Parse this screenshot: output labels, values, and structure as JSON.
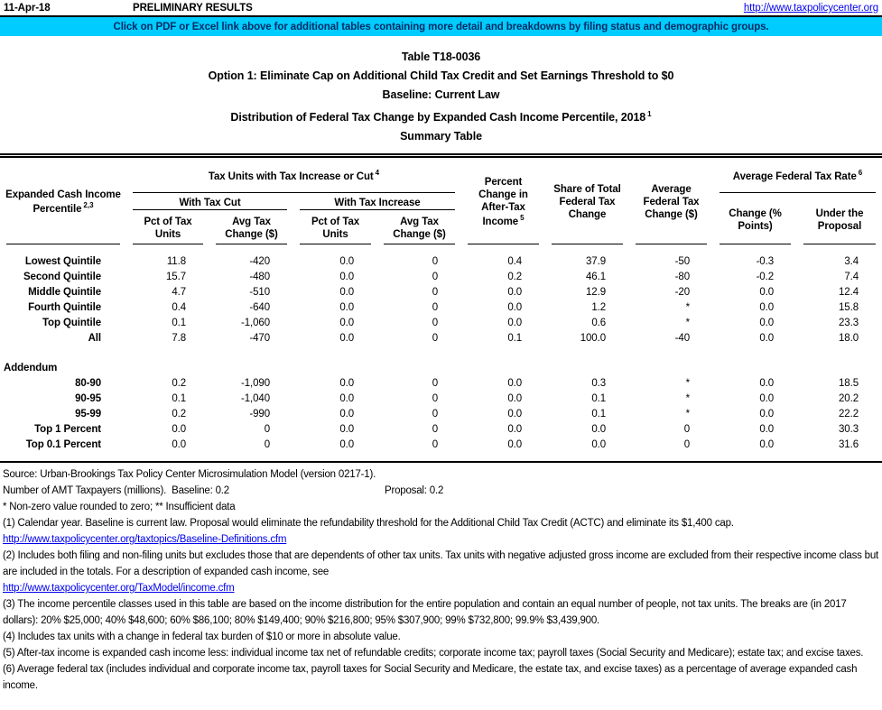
{
  "colors": {
    "banner_background": "#00CCFF",
    "banner_text": "#002B63",
    "hyperlink": "#0000EE",
    "text": "#000000"
  },
  "top_bar": {
    "date": "11-Apr-18",
    "status": "PRELIMINARY RESULTS",
    "url": "http://www.taxpolicycenter.org"
  },
  "banner": {
    "text": "Click on PDF or Excel link above for additional tables containing more detail and breakdowns by filing status and demographic groups."
  },
  "title": {
    "line1": "Table T18-0036",
    "line2": "Option 1: Eliminate Cap on Additional Child Tax Credit and Set Earnings Threshold to $0",
    "line3": "Baseline: Current Law",
    "line4": "Distribution of Federal Tax Change by Expanded Cash Income Percentile, 2018",
    "line4_sup": "1",
    "line5": "Summary Table"
  },
  "table": {
    "headers": {
      "stub": "Expanded Cash Income\nPercentile",
      "stub_sup": "2,3",
      "group_tax_units": "Tax Units with Tax Increase or Cut",
      "group_tax_units_sup": "4",
      "with_tax_cut": "With Tax Cut",
      "with_tax_increase": "With Tax Increase",
      "pct_of_tax_units": "Pct of Tax\nUnits",
      "avg_tax_change": "Avg Tax\nChange ($)",
      "pct_change_after_tax": "Percent\nChange in\nAfter-Tax\nIncome",
      "pct_change_after_tax_sup": "5",
      "share_of_total": "Share of Total\nFederal Tax\nChange",
      "avg_federal_tax_change": "Average\nFederal Tax\nChange ($)",
      "avg_federal_tax_rate": "Average Federal Tax Rate",
      "avg_federal_tax_rate_sup": "6",
      "change_pct_points": "Change (%\nPoints)",
      "under_the_proposal": "Under the\nProposal"
    },
    "rows": [
      {
        "label": "Lowest Quintile",
        "values": [
          "11.8",
          "-420",
          "0.0",
          "0",
          "0.4",
          "37.9",
          "-50",
          "-0.3",
          "3.4"
        ]
      },
      {
        "label": "Second Quintile",
        "values": [
          "15.7",
          "-480",
          "0.0",
          "0",
          "0.2",
          "46.1",
          "-80",
          "-0.2",
          "7.4"
        ]
      },
      {
        "label": "Middle Quintile",
        "values": [
          "4.7",
          "-510",
          "0.0",
          "0",
          "0.0",
          "12.9",
          "-20",
          "0.0",
          "12.4"
        ]
      },
      {
        "label": "Fourth Quintile",
        "values": [
          "0.4",
          "-640",
          "0.0",
          "0",
          "0.0",
          "1.2",
          "*",
          "0.0",
          "15.8"
        ]
      },
      {
        "label": "Top Quintile",
        "values": [
          "0.1",
          "-1,060",
          "0.0",
          "0",
          "0.0",
          "0.6",
          "*",
          "0.0",
          "23.3"
        ]
      },
      {
        "label": "All",
        "values": [
          "7.8",
          "-470",
          "0.0",
          "0",
          "0.1",
          "100.0",
          "-40",
          "0.0",
          "18.0"
        ]
      }
    ],
    "addendum_label": "Addendum",
    "addendum_rows": [
      {
        "label": "80-90",
        "values": [
          "0.2",
          "-1,090",
          "0.0",
          "0",
          "0.0",
          "0.3",
          "*",
          "0.0",
          "18.5"
        ]
      },
      {
        "label": "90-95",
        "values": [
          "0.1",
          "-1,040",
          "0.0",
          "0",
          "0.0",
          "0.1",
          "*",
          "0.0",
          "20.2"
        ]
      },
      {
        "label": "95-99",
        "values": [
          "0.2",
          "-990",
          "0.0",
          "0",
          "0.0",
          "0.1",
          "*",
          "0.0",
          "22.2"
        ]
      },
      {
        "label": "Top 1 Percent",
        "values": [
          "0.0",
          "0",
          "0.0",
          "0",
          "0.0",
          "0.0",
          "0",
          "0.0",
          "30.3"
        ]
      },
      {
        "label": "Top 0.1 Percent",
        "values": [
          "0.0",
          "0",
          "0.0",
          "0",
          "0.0",
          "0.0",
          "0",
          "0.0",
          "31.6"
        ]
      }
    ]
  },
  "footer": {
    "source": "Source: Urban-Brookings Tax Policy Center Microsimulation Model (version 0217-1).",
    "amt_line": "Number of AMT Taxpayers (millions).  Baseline: 0.2",
    "amt_proposal": "Proposal: 0.2",
    "legend": "* Non-zero value rounded to zero; ** Insufficient data",
    "note1": "(1) Calendar year. Baseline is current law. Proposal would eliminate the refundability threshold for the Additional Child Tax Credit (ACTC) and eliminate its $1,400 cap.",
    "link1": "http://www.taxpolicycenter.org/taxtopics/Baseline-Definitions.cfm",
    "note2": "(2) Includes both filing and non-filing units but excludes those that are dependents of other tax units. Tax units with negative adjusted gross income are excluded from their respective income class but are included in the totals. For a description of expanded cash income, see",
    "link2": "http://www.taxpolicycenter.org/TaxModel/income.cfm",
    "note3": "(3) The income percentile classes used in this table are based on the income distribution for the entire population and contain an equal number of people, not tax units. The breaks are (in 2017 dollars): 20% $25,000; 40% $48,600; 60% $86,100; 80% $149,400; 90% $216,800; 95% $307,900; 99% $732,800; 99.9% $3,439,900.",
    "note4": "(4) Includes tax units with a change in federal tax burden of $10 or more in absolute value.",
    "note5": "(5) After-tax income is expanded cash income less: individual income tax net of refundable credits; corporate income tax; payroll taxes (Social Security and Medicare); estate tax; and excise taxes.",
    "note6": "(6) Average federal tax (includes individual and corporate income tax, payroll taxes for Social Security and Medicare, the estate tax, and excise taxes) as a percentage of average expanded cash income."
  }
}
